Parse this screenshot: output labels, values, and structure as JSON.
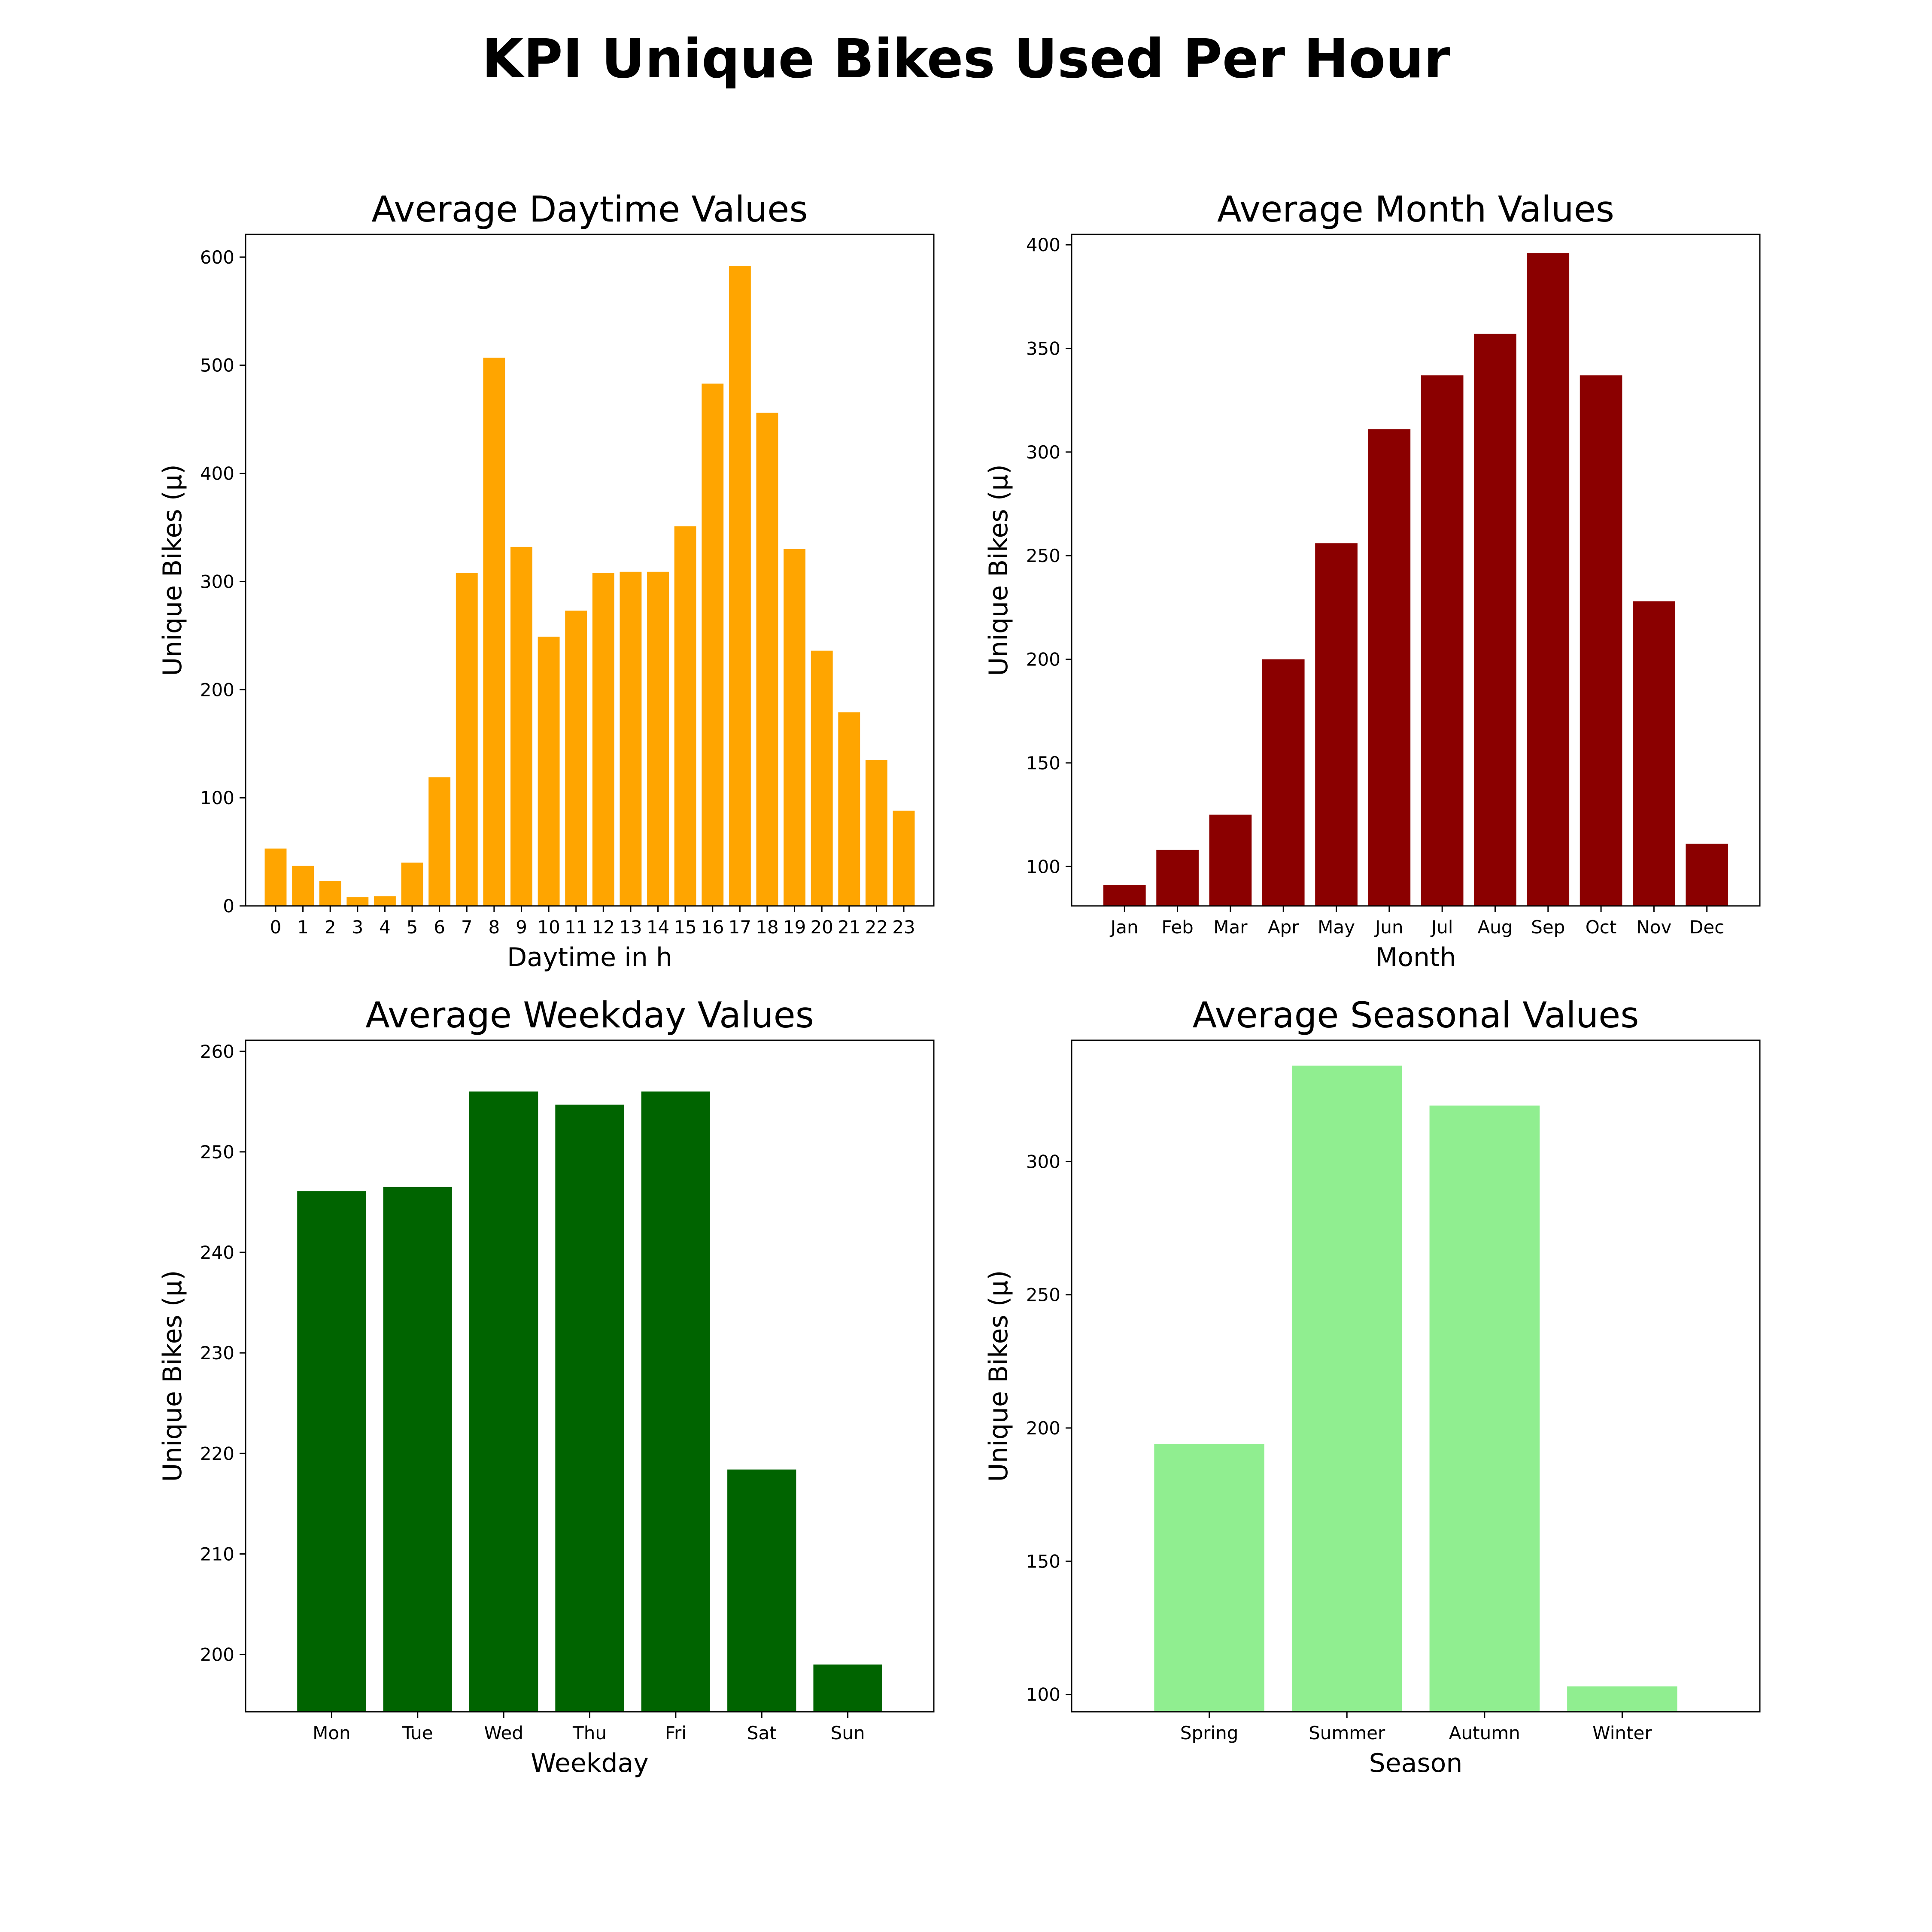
{
  "figure": {
    "title": "KPI Unique Bikes Used Per Hour"
  },
  "chart_data": [
    {
      "type": "bar",
      "title": "Average Daytime Values",
      "xlabel": "Daytime in h",
      "ylabel": "Unique Bikes (µ)",
      "color": "#FFA500",
      "categories": [
        "0",
        "1",
        "2",
        "3",
        "4",
        "5",
        "6",
        "7",
        "8",
        "9",
        "10",
        "11",
        "12",
        "13",
        "14",
        "15",
        "16",
        "17",
        "18",
        "19",
        "20",
        "21",
        "22",
        "23"
      ],
      "values": [
        53,
        37,
        23,
        8,
        9,
        40,
        119,
        308,
        507,
        332,
        249,
        273,
        308,
        309,
        309,
        351,
        483,
        592,
        456,
        330,
        236,
        179,
        135,
        88
      ],
      "ylim": [
        0,
        621
      ],
      "yticks": [
        0,
        100,
        200,
        300,
        400,
        500,
        600
      ],
      "grid": false,
      "legend": false
    },
    {
      "type": "bar",
      "title": "Average Month Values",
      "xlabel": "Month",
      "ylabel": "Unique Bikes (µ)",
      "color": "#8B0000",
      "categories": [
        "Jan",
        "Feb",
        "Mar",
        "Apr",
        "May",
        "Jun",
        "Jul",
        "Aug",
        "Sep",
        "Oct",
        "Nov",
        "Dec"
      ],
      "values": [
        91,
        108,
        125,
        200,
        256,
        311,
        337,
        357,
        396,
        337,
        228,
        111
      ],
      "ylim": [
        81,
        405
      ],
      "yticks": [
        100,
        150,
        200,
        250,
        300,
        350,
        400
      ],
      "grid": false,
      "legend": false
    },
    {
      "type": "bar",
      "title": "Average Weekday Values",
      "xlabel": "Weekday",
      "ylabel": "Unique Bikes (µ)",
      "color": "#006400",
      "categories": [
        "Mon",
        "Tue",
        "Wed",
        "Thu",
        "Fri",
        "Sat",
        "Sun"
      ],
      "values": [
        246.1,
        246.5,
        256.0,
        254.7,
        256.0,
        218.4,
        199.0
      ],
      "ylim": [
        194.3,
        261.1
      ],
      "yticks": [
        200,
        210,
        220,
        230,
        240,
        250,
        260
      ],
      "grid": false,
      "legend": false
    },
    {
      "type": "bar",
      "title": "Average Seasonal Values",
      "xlabel": "Season",
      "ylabel": "Unique Bikes (µ)",
      "color": "#90EE90",
      "categories": [
        "Spring",
        "Summer",
        "Autumn",
        "Winter"
      ],
      "values": [
        194,
        336,
        321,
        103
      ],
      "ylim": [
        93.5,
        345.5
      ],
      "yticks": [
        100,
        150,
        200,
        250,
        300
      ],
      "grid": false,
      "legend": false
    }
  ]
}
